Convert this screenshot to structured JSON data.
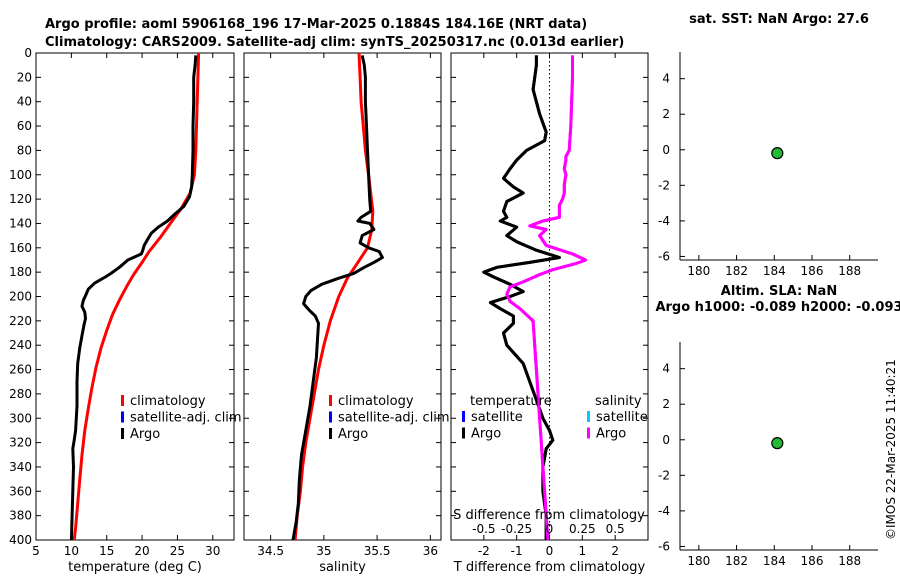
{
  "header": {
    "line1": "Argo profile: aoml 5906168_196 17-Mar-2025 0.1884S 184.16E (NRT data)",
    "line2": "Climatology: CARS2009. Satellite-adj clim: synTS_20250317.nc (0.013d earlier)"
  },
  "side_label": "©IMOS 22-Mar-2025 11:40:21",
  "colors": {
    "climatology": "#ff0000",
    "satellite": "#0000ff",
    "argo": "#000000",
    "salinity_argo": "#ff00ff",
    "salinity_satellite": "#00ccff",
    "marker": "#22bb33"
  },
  "chart_data": [
    {
      "id": "temperature",
      "type": "line",
      "xlabel": "temperature (deg C)",
      "xlim": [
        5,
        33
      ],
      "ylim": [
        400,
        0
      ],
      "xticks": [
        5,
        10,
        15,
        20,
        25,
        30
      ],
      "yticks": [
        0,
        20,
        40,
        60,
        80,
        100,
        120,
        140,
        160,
        180,
        200,
        220,
        240,
        260,
        280,
        300,
        320,
        340,
        360,
        380,
        400
      ],
      "legend": [
        "climatology",
        "satellite-adj. clim",
        "Argo"
      ],
      "series": [
        {
          "name": "climatology",
          "color": "#ff0000",
          "points": [
            [
              28.0,
              0
            ],
            [
              27.9,
              20
            ],
            [
              27.8,
              40
            ],
            [
              27.7,
              60
            ],
            [
              27.6,
              80
            ],
            [
              27.4,
              100
            ],
            [
              26.8,
              115
            ],
            [
              25.5,
              128
            ],
            [
              24.0,
              140
            ],
            [
              22.5,
              152
            ],
            [
              21.0,
              163
            ],
            [
              20.0,
              172
            ],
            [
              18.8,
              182
            ],
            [
              17.8,
              192
            ],
            [
              16.8,
              203
            ],
            [
              15.8,
              215
            ],
            [
              15.0,
              228
            ],
            [
              14.2,
              242
            ],
            [
              13.5,
              258
            ],
            [
              12.9,
              275
            ],
            [
              12.4,
              292
            ],
            [
              11.9,
              310
            ],
            [
              11.5,
              330
            ],
            [
              11.2,
              350
            ],
            [
              10.9,
              370
            ],
            [
              10.6,
              390
            ],
            [
              10.4,
              400
            ]
          ]
        },
        {
          "name": "Argo",
          "color": "#000000",
          "points": [
            [
              27.6,
              2
            ],
            [
              27.5,
              10
            ],
            [
              27.3,
              20
            ],
            [
              27.3,
              40
            ],
            [
              27.2,
              60
            ],
            [
              27.2,
              80
            ],
            [
              27.1,
              100
            ],
            [
              27.0,
              110
            ],
            [
              26.7,
              118
            ],
            [
              25.9,
              126
            ],
            [
              24.5,
              133
            ],
            [
              23.6,
              138
            ],
            [
              22.3,
              143
            ],
            [
              21.3,
              148
            ],
            [
              20.8,
              153
            ],
            [
              20.3,
              158
            ],
            [
              20.1,
              162
            ],
            [
              19.9,
              165
            ],
            [
              18.0,
              170
            ],
            [
              16.8,
              176
            ],
            [
              15.6,
              181
            ],
            [
              14.8,
              184
            ],
            [
              13.3,
              189
            ],
            [
              12.4,
              194
            ],
            [
              12.1,
              198
            ],
            [
              11.7,
              203
            ],
            [
              11.5,
              208
            ],
            [
              11.9,
              213
            ],
            [
              12.0,
              218
            ],
            [
              11.8,
              223
            ],
            [
              11.5,
              232
            ],
            [
              11.2,
              242
            ],
            [
              10.9,
              255
            ],
            [
              10.8,
              270
            ],
            [
              10.8,
              290
            ],
            [
              10.6,
              310
            ],
            [
              10.4,
              318
            ],
            [
              10.2,
              325
            ],
            [
              10.3,
              340
            ],
            [
              10.2,
              360
            ],
            [
              10.1,
              380
            ],
            [
              10.0,
              400
            ]
          ]
        }
      ]
    },
    {
      "id": "salinity",
      "type": "line",
      "xlabel": "salinity",
      "xlim": [
        34.25,
        36.1
      ],
      "ylim": [
        400,
        0
      ],
      "xticks": [
        34.5,
        35,
        35.5,
        36
      ],
      "legend": [
        "climatology",
        "satellite-adj. clim",
        "Argo"
      ],
      "series": [
        {
          "name": "climatology",
          "color": "#ff0000",
          "points": [
            [
              35.33,
              0
            ],
            [
              35.34,
              20
            ],
            [
              35.35,
              40
            ],
            [
              35.37,
              60
            ],
            [
              35.39,
              80
            ],
            [
              35.42,
              100
            ],
            [
              35.44,
              115
            ],
            [
              35.46,
              130
            ],
            [
              35.45,
              145
            ],
            [
              35.41,
              160
            ],
            [
              35.32,
              172
            ],
            [
              35.22,
              185
            ],
            [
              35.14,
              200
            ],
            [
              35.06,
              220
            ],
            [
              35.0,
              240
            ],
            [
              34.95,
              260
            ],
            [
              34.91,
              280
            ],
            [
              34.87,
              300
            ],
            [
              34.83,
              320
            ],
            [
              34.8,
              340
            ],
            [
              34.78,
              360
            ],
            [
              34.75,
              380
            ],
            [
              34.73,
              400
            ]
          ]
        },
        {
          "name": "Argo",
          "color": "#000000",
          "points": [
            [
              35.36,
              2
            ],
            [
              35.38,
              10
            ],
            [
              35.39,
              20
            ],
            [
              35.39,
              40
            ],
            [
              35.4,
              60
            ],
            [
              35.41,
              80
            ],
            [
              35.42,
              100
            ],
            [
              35.43,
              120
            ],
            [
              35.44,
              130
            ],
            [
              35.35,
              135
            ],
            [
              35.32,
              138
            ],
            [
              35.43,
              140
            ],
            [
              35.47,
              145
            ],
            [
              35.36,
              150
            ],
            [
              35.34,
              156
            ],
            [
              35.42,
              160
            ],
            [
              35.52,
              163
            ],
            [
              35.55,
              168
            ],
            [
              35.47,
              172
            ],
            [
              35.38,
              176
            ],
            [
              35.28,
              181
            ],
            [
              35.14,
              185
            ],
            [
              34.98,
              190
            ],
            [
              34.88,
              195
            ],
            [
              34.83,
              200
            ],
            [
              34.81,
              206
            ],
            [
              34.86,
              211
            ],
            [
              34.92,
              216
            ],
            [
              34.95,
              222
            ],
            [
              34.94,
              235
            ],
            [
              34.93,
              250
            ],
            [
              34.9,
              270
            ],
            [
              34.87,
              290
            ],
            [
              34.83,
              310
            ],
            [
              34.79,
              330
            ],
            [
              34.77,
              350
            ],
            [
              34.76,
              370
            ],
            [
              34.74,
              385
            ],
            [
              34.71,
              400
            ]
          ]
        }
      ]
    },
    {
      "id": "difference",
      "type": "line",
      "xlabel": "T difference from climatology",
      "top_axis_label": "S difference from climatology",
      "xlim": [
        -3,
        3
      ],
      "xticks": [
        -2,
        -1,
        0,
        1,
        2
      ],
      "s_xticks": [
        "-0.5",
        "-0.25",
        "0",
        "0.25",
        "0.5"
      ],
      "s_xtick_values": [
        -2,
        -1,
        0,
        1,
        2
      ],
      "legend_temperature_title": "temperature",
      "legend_salinity_title": "salinity",
      "legend_entries": [
        "satellite",
        "Argo"
      ],
      "series": [
        {
          "name": "temperature Argo",
          "color": "#000000",
          "points": [
            [
              -0.4,
              2
            ],
            [
              -0.4,
              10
            ],
            [
              -0.5,
              30
            ],
            [
              -0.3,
              50
            ],
            [
              -0.1,
              65
            ],
            [
              -0.15,
              72
            ],
            [
              -0.7,
              80
            ],
            [
              -1.0,
              88
            ],
            [
              -1.2,
              95
            ],
            [
              -1.4,
              103
            ],
            [
              -1.1,
              110
            ],
            [
              -0.8,
              115
            ],
            [
              -1.3,
              122
            ],
            [
              -1.4,
              130
            ],
            [
              -1.3,
              135
            ],
            [
              -1.5,
              138
            ],
            [
              -1.0,
              143
            ],
            [
              -1.3,
              150
            ],
            [
              -1.0,
              155
            ],
            [
              -0.4,
              162
            ],
            [
              0.3,
              168
            ],
            [
              -0.6,
              172
            ],
            [
              -1.6,
              176
            ],
            [
              -2.0,
              180
            ],
            [
              -1.7,
              184
            ],
            [
              -1.2,
              190
            ],
            [
              -0.8,
              196
            ],
            [
              -1.2,
              200
            ],
            [
              -1.8,
              205
            ],
            [
              -1.5,
              210
            ],
            [
              -1.1,
              216
            ],
            [
              -1.1,
              222
            ],
            [
              -1.4,
              230
            ],
            [
              -1.3,
              240
            ],
            [
              -0.8,
              255
            ],
            [
              -0.6,
              270
            ],
            [
              -0.4,
              285
            ],
            [
              -0.2,
              300
            ],
            [
              0.0,
              310
            ],
            [
              0.1,
              318
            ],
            [
              -0.1,
              325
            ],
            [
              -0.2,
              340
            ],
            [
              -0.2,
              360
            ],
            [
              -0.1,
              380
            ],
            [
              -0.1,
              400
            ]
          ]
        },
        {
          "name": "salinity Argo",
          "color": "#ff00ff",
          "points": [
            [
              0.7,
              2
            ],
            [
              0.7,
              20
            ],
            [
              0.65,
              60
            ],
            [
              0.6,
              80
            ],
            [
              0.5,
              85
            ],
            [
              0.5,
              88
            ],
            [
              0.45,
              95
            ],
            [
              0.5,
              100
            ],
            [
              0.45,
              108
            ],
            [
              0.45,
              115
            ],
            [
              0.4,
              120
            ],
            [
              0.3,
              125
            ],
            [
              0.3,
              135
            ],
            [
              -0.2,
              138
            ],
            [
              -0.6,
              142
            ],
            [
              -0.1,
              145
            ],
            [
              -0.3,
              150
            ],
            [
              -0.1,
              158
            ],
            [
              0.7,
              165
            ],
            [
              1.1,
              170
            ],
            [
              0.8,
              173
            ],
            [
              0.1,
              178
            ],
            [
              -0.3,
              182
            ],
            [
              -0.8,
              188
            ],
            [
              -1.2,
              192
            ],
            [
              -1.3,
              198
            ],
            [
              -1.2,
              204
            ],
            [
              -0.9,
              210
            ],
            [
              -0.7,
              215
            ],
            [
              -0.5,
              220
            ],
            [
              -0.45,
              240
            ],
            [
              -0.4,
              260
            ],
            [
              -0.35,
              280
            ],
            [
              -0.3,
              300
            ],
            [
              -0.25,
              320
            ],
            [
              -0.2,
              340
            ],
            [
              -0.15,
              360
            ],
            [
              -0.1,
              380
            ],
            [
              -0.05,
              400
            ]
          ]
        }
      ]
    },
    {
      "id": "sst",
      "type": "scatter",
      "title": "sat. SST: NaN Argo: 27.6",
      "xlim": [
        179,
        189.5
      ],
      "ylim": [
        -6.2,
        5.5
      ],
      "xticks": [
        180,
        182,
        184,
        186,
        188
      ],
      "yticks": [
        4,
        2,
        0,
        -2,
        -4,
        -6
      ],
      "points": [
        [
          184.16,
          -0.19
        ]
      ]
    },
    {
      "id": "sla",
      "type": "scatter",
      "title_line1": "Altim. SLA: NaN",
      "title_line2": "Argo h1000: -0.089 h2000: -0.093",
      "xlim": [
        179,
        189.5
      ],
      "ylim": [
        -6.2,
        5.5
      ],
      "xticks": [
        180,
        182,
        184,
        186,
        188
      ],
      "yticks": [
        4,
        2,
        0,
        -2,
        -4,
        -6
      ],
      "points": [
        [
          184.16,
          -0.19
        ]
      ]
    }
  ]
}
